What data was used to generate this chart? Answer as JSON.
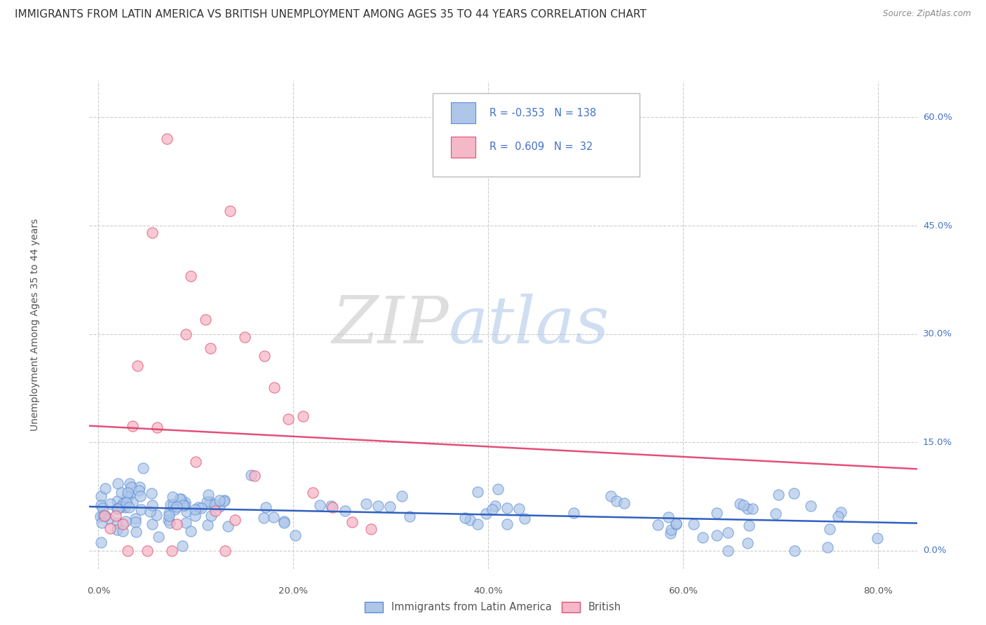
{
  "title": "IMMIGRANTS FROM LATIN AMERICA VS BRITISH UNEMPLOYMENT AMONG AGES 35 TO 44 YEARS CORRELATION CHART",
  "source": "Source: ZipAtlas.com",
  "ylabel": "Unemployment Among Ages 35 to 44 years",
  "xlabel_ticks": [
    "0.0%",
    "20.0%",
    "40.0%",
    "60.0%",
    "80.0%"
  ],
  "xlabel_vals": [
    0.0,
    0.2,
    0.4,
    0.6,
    0.8
  ],
  "ylabel_ticks": [
    "0.0%",
    "15.0%",
    "30.0%",
    "45.0%",
    "60.0%"
  ],
  "ylabel_vals": [
    0.0,
    0.15,
    0.3,
    0.45,
    0.6
  ],
  "xlim": [
    -0.01,
    0.84
  ],
  "ylim": [
    -0.025,
    0.65
  ],
  "blue_R": -0.353,
  "blue_N": 138,
  "pink_R": 0.609,
  "pink_N": 32,
  "blue_color": "#aec6e8",
  "pink_color": "#f5b8c8",
  "blue_edge_color": "#5b8dd9",
  "pink_edge_color": "#e05070",
  "blue_line_color": "#3060c0",
  "pink_line_color": "#e03060",
  "legend_blue_label": "Immigrants from Latin America",
  "legend_pink_label": "British",
  "background_color": "#ffffff",
  "grid_color": "#cccccc",
  "title_fontsize": 11,
  "axis_label_fontsize": 10,
  "tick_fontsize": 9.5,
  "right_tick_color": "#4472c4",
  "bottom_tick_color": "#555555"
}
